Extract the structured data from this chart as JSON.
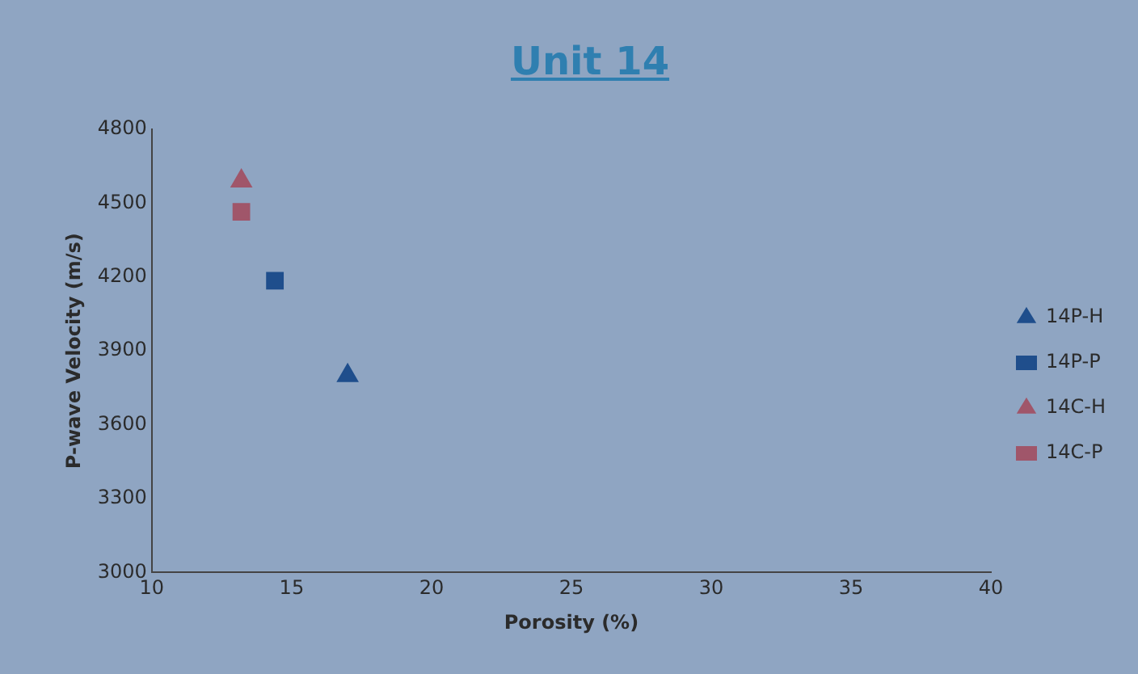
{
  "chart_data": {
    "type": "scatter",
    "title": "Unit 14",
    "xlabel": "Porosity (%)",
    "ylabel": "P-wave Velocity (m/s)",
    "xlim": [
      10,
      40
    ],
    "xticks": [
      10,
      15,
      20,
      25,
      30,
      35,
      40
    ],
    "ylim": [
      3000,
      4800
    ],
    "yticks": [
      3000,
      3300,
      3600,
      3900,
      4200,
      4500,
      4800
    ],
    "grid": false,
    "legend": "right",
    "series": [
      {
        "name": "14P-H",
        "color": "#1f4e8c",
        "marker": "triangle",
        "x": [
          17.0
        ],
        "values": [
          3800
        ]
      },
      {
        "name": "14P-P",
        "color": "#1f4e8c",
        "marker": "square",
        "x": [
          14.4
        ],
        "values": [
          4185
        ]
      },
      {
        "name": "14C-H",
        "color": "#a0566a",
        "marker": "triangle",
        "x": [
          13.2
        ],
        "values": [
          4590
        ]
      },
      {
        "name": "14C-P",
        "color": "#a0566a",
        "marker": "square",
        "x": [
          13.2
        ],
        "values": [
          4465
        ]
      }
    ]
  }
}
